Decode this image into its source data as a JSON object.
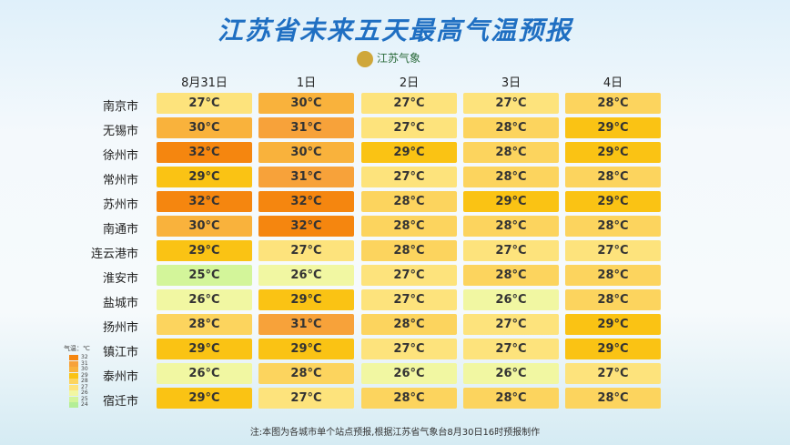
{
  "header": {
    "title": "江苏省未来五天最高气温预报",
    "logo": "江苏气象"
  },
  "table": {
    "columns": [
      "8月31日",
      "1日",
      "2日",
      "3日",
      "4日"
    ],
    "rows": [
      {
        "city": "南京市",
        "temps": [
          "27°C",
          "30°C",
          "27°C",
          "27°C",
          "28°C"
        ]
      },
      {
        "city": "无锡市",
        "temps": [
          "30°C",
          "31°C",
          "27°C",
          "28°C",
          "29°C"
        ]
      },
      {
        "city": "徐州市",
        "temps": [
          "32°C",
          "30°C",
          "29°C",
          "28°C",
          "29°C"
        ]
      },
      {
        "city": "常州市",
        "temps": [
          "29°C",
          "31°C",
          "27°C",
          "28°C",
          "28°C"
        ]
      },
      {
        "city": "苏州市",
        "temps": [
          "32°C",
          "32°C",
          "28°C",
          "29°C",
          "29°C"
        ]
      },
      {
        "city": "南通市",
        "temps": [
          "30°C",
          "32°C",
          "28°C",
          "28°C",
          "28°C"
        ]
      },
      {
        "city": "连云港市",
        "temps": [
          "29°C",
          "27°C",
          "28°C",
          "27°C",
          "27°C"
        ]
      },
      {
        "city": "淮安市",
        "temps": [
          "25°C",
          "26°C",
          "27°C",
          "28°C",
          "28°C"
        ]
      },
      {
        "city": "盐城市",
        "temps": [
          "26°C",
          "29°C",
          "27°C",
          "26°C",
          "28°C"
        ]
      },
      {
        "city": "扬州市",
        "temps": [
          "28°C",
          "31°C",
          "28°C",
          "27°C",
          "29°C"
        ]
      },
      {
        "city": "镇江市",
        "temps": [
          "29°C",
          "29°C",
          "27°C",
          "27°C",
          "29°C"
        ]
      },
      {
        "city": "泰州市",
        "temps": [
          "26°C",
          "28°C",
          "26°C",
          "26°C",
          "27°C"
        ]
      },
      {
        "city": "宿迁市",
        "temps": [
          "29°C",
          "27°C",
          "28°C",
          "28°C",
          "28°C"
        ]
      }
    ]
  },
  "legend": {
    "title": "气温：℃",
    "items": [
      {
        "label": "32",
        "color": "#f5860f"
      },
      {
        "label": "31",
        "color": "#f7a23a"
      },
      {
        "label": "30",
        "color": "#f9b23c"
      },
      {
        "label": "29",
        "color": "#fac314"
      },
      {
        "label": "28",
        "color": "#fcd45e"
      },
      {
        "label": "27",
        "color": "#fde37c"
      },
      {
        "label": "26",
        "color": "#f1f7a2"
      },
      {
        "label": "25",
        "color": "#d3f59a"
      },
      {
        "label": "24",
        "color": "#b4ee96"
      }
    ]
  },
  "footer": {
    "note": "注:本图为各城市单个站点预报,根据江苏省气象台8月30日16时预报制作"
  }
}
